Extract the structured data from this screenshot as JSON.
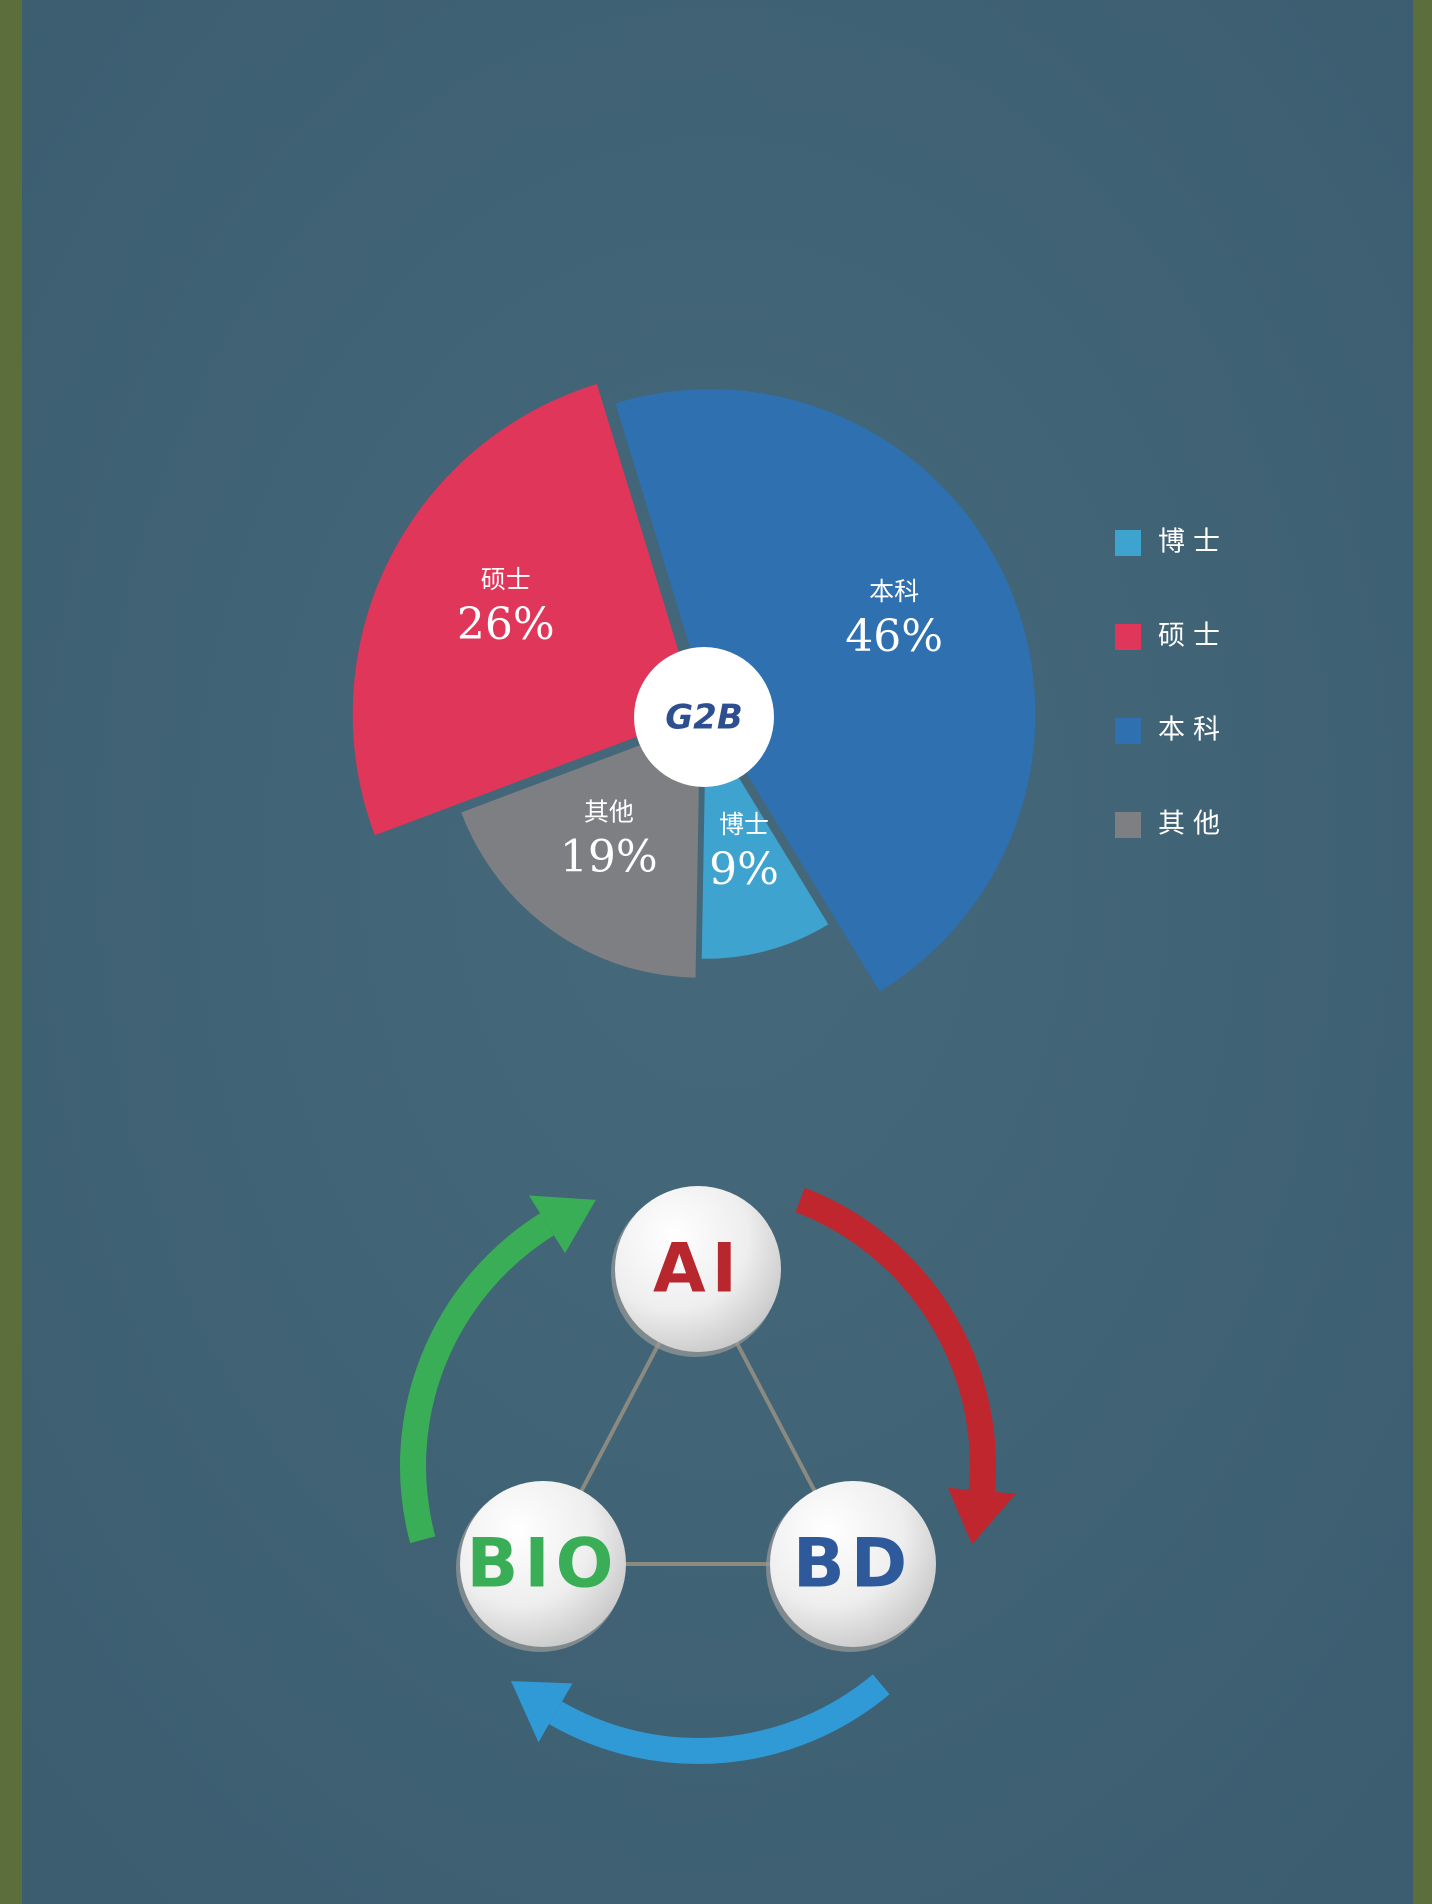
{
  "chart_data": {
    "type": "pie",
    "categories": [
      "博士",
      "硕士",
      "本科",
      "其他"
    ],
    "values": [
      9,
      26,
      46,
      19
    ],
    "value_labels": [
      "9%",
      "26%",
      "46%",
      "19%"
    ],
    "colors": [
      "#3fa3cf",
      "#e0365a",
      "#2e70b0",
      "#7d7f83"
    ],
    "legend": "right",
    "center_logo": "G2B"
  },
  "diagram": {
    "nodes": [
      "AI",
      "BIO",
      "BD"
    ]
  }
}
